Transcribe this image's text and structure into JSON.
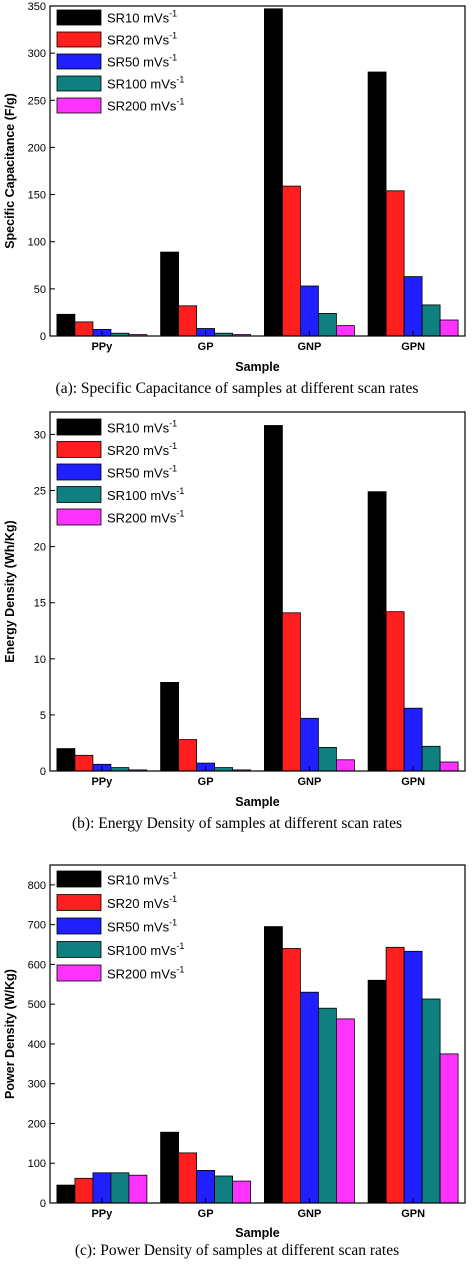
{
  "series_colors": [
    "#000000",
    "#ff1f1f",
    "#1f1fff",
    "#0f7f7f",
    "#ff33ff"
  ],
  "chart_data": [
    {
      "type": "bar",
      "caption": "(a): Specific Capacitance of samples at different scan rates",
      "xlabel": "Sample",
      "ylabel": "Specific Capacitance (F/g)",
      "categories": [
        "PPy",
        "GP",
        "GNP",
        "GPN"
      ],
      "ylim": [
        0,
        350
      ],
      "yticks": [
        0,
        50,
        100,
        150,
        200,
        250,
        300,
        350
      ],
      "legend_position": "top-left",
      "series": [
        {
          "name": "SR10 mVs",
          "superscript": "-1",
          "values": [
            23,
            89,
            347,
            280
          ]
        },
        {
          "name": "SR20 mVs",
          "superscript": "-1",
          "values": [
            15,
            32,
            159,
            154
          ]
        },
        {
          "name": "SR50 mVs",
          "superscript": "-1",
          "values": [
            7,
            8,
            53,
            63
          ]
        },
        {
          "name": "SR100 mVs",
          "superscript": "-1",
          "values": [
            3,
            3,
            24,
            33
          ]
        },
        {
          "name": "SR200 mVs",
          "superscript": "-1",
          "values": [
            1.5,
            1.5,
            11,
            17
          ]
        }
      ]
    },
    {
      "type": "bar",
      "caption": "(b): Energy Density of samples at different scan rates",
      "xlabel": "Sample",
      "ylabel": "Energy Density (Wh/Kg)",
      "categories": [
        "PPy",
        "GP",
        "GNP",
        "GPN"
      ],
      "ylim": [
        0,
        32
      ],
      "yticks": [
        0,
        5,
        10,
        15,
        20,
        25,
        30
      ],
      "legend_position": "top-left",
      "series": [
        {
          "name": "SR10 mVs",
          "superscript": "-1",
          "values": [
            2.0,
            7.9,
            30.8,
            24.9
          ]
        },
        {
          "name": "SR20 mVs",
          "superscript": "-1",
          "values": [
            1.4,
            2.8,
            14.1,
            14.2
          ]
        },
        {
          "name": "SR50 mVs",
          "superscript": "-1",
          "values": [
            0.6,
            0.7,
            4.7,
            5.6
          ]
        },
        {
          "name": "SR100 mVs",
          "superscript": "-1",
          "values": [
            0.3,
            0.3,
            2.1,
            2.2
          ]
        },
        {
          "name": "SR200 mVs",
          "superscript": "-1",
          "values": [
            0.1,
            0.1,
            1.0,
            0.8
          ]
        }
      ]
    },
    {
      "type": "bar",
      "caption": "(c): Power Density of samples at different scan rates",
      "xlabel": "Sample",
      "ylabel": "Power Density (W/Kg)",
      "categories": [
        "PPy",
        "GP",
        "GNP",
        "GPN"
      ],
      "ylim": [
        0,
        850
      ],
      "yticks": [
        0,
        100,
        200,
        300,
        400,
        500,
        600,
        700,
        800
      ],
      "legend_position": "top-left",
      "series": [
        {
          "name": "SR10 mVs",
          "superscript": "-1",
          "values": [
            45,
            178,
            695,
            560
          ]
        },
        {
          "name": "SR20 mVs",
          "superscript": "-1",
          "values": [
            62,
            126,
            640,
            643
          ]
        },
        {
          "name": "SR50 mVs",
          "superscript": "-1",
          "values": [
            76,
            82,
            530,
            633
          ]
        },
        {
          "name": "SR100 mVs",
          "superscript": "-1",
          "values": [
            76,
            68,
            490,
            513
          ]
        },
        {
          "name": "SR200 mVs",
          "superscript": "-1",
          "values": [
            70,
            55,
            463,
            375
          ]
        }
      ]
    }
  ]
}
